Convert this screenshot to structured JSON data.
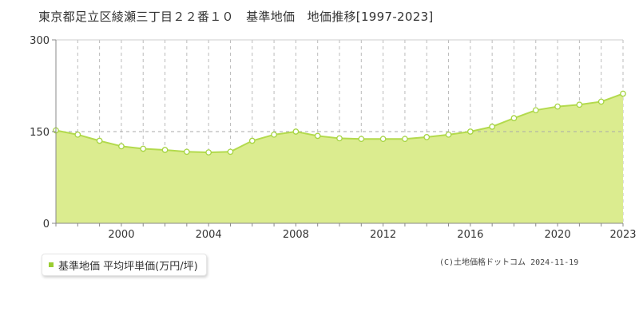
{
  "title": "東京都足立区綾瀬三丁目２２番１０　基準地価　地価推移[1997-2023]",
  "legend": {
    "label": "基準地価 平均坪単価(万円/坪)"
  },
  "credit": "(C)土地価格ドットコム 2024-11-19",
  "colors": {
    "fill": "#dbec8f",
    "line": "#b3da4d",
    "marker_stroke": "#a6d443",
    "legend_swatch": "#9acd32",
    "grid": "#bbbbbb",
    "axis": "#888888"
  },
  "chart_data": {
    "type": "area",
    "x_tick_labels": [
      "2000",
      "2004",
      "2008",
      "2012",
      "2016",
      "2020",
      "2023"
    ],
    "x_ticks": [
      2000,
      2004,
      2008,
      2012,
      2016,
      2020,
      2023
    ],
    "y_tick_labels": [
      "0",
      "150",
      "300"
    ],
    "y_ticks": [
      0,
      150,
      300
    ],
    "xlim": [
      1997,
      2023
    ],
    "ylim": [
      0,
      300
    ],
    "grid": true,
    "legend_position": "bottom-left",
    "series": [
      {
        "name": "基準地価 平均坪単価(万円/坪)",
        "x": [
          1997,
          1998,
          1999,
          2000,
          2001,
          2002,
          2003,
          2004,
          2005,
          2006,
          2007,
          2008,
          2009,
          2010,
          2011,
          2012,
          2013,
          2014,
          2015,
          2016,
          2017,
          2018,
          2019,
          2020,
          2021,
          2022,
          2023
        ],
        "values": [
          152,
          145,
          135,
          126,
          122,
          120,
          117,
          116,
          117,
          135,
          145,
          150,
          143,
          139,
          138,
          138,
          138,
          141,
          145,
          150,
          158,
          172,
          185,
          191,
          194,
          199,
          212
        ]
      }
    ]
  }
}
